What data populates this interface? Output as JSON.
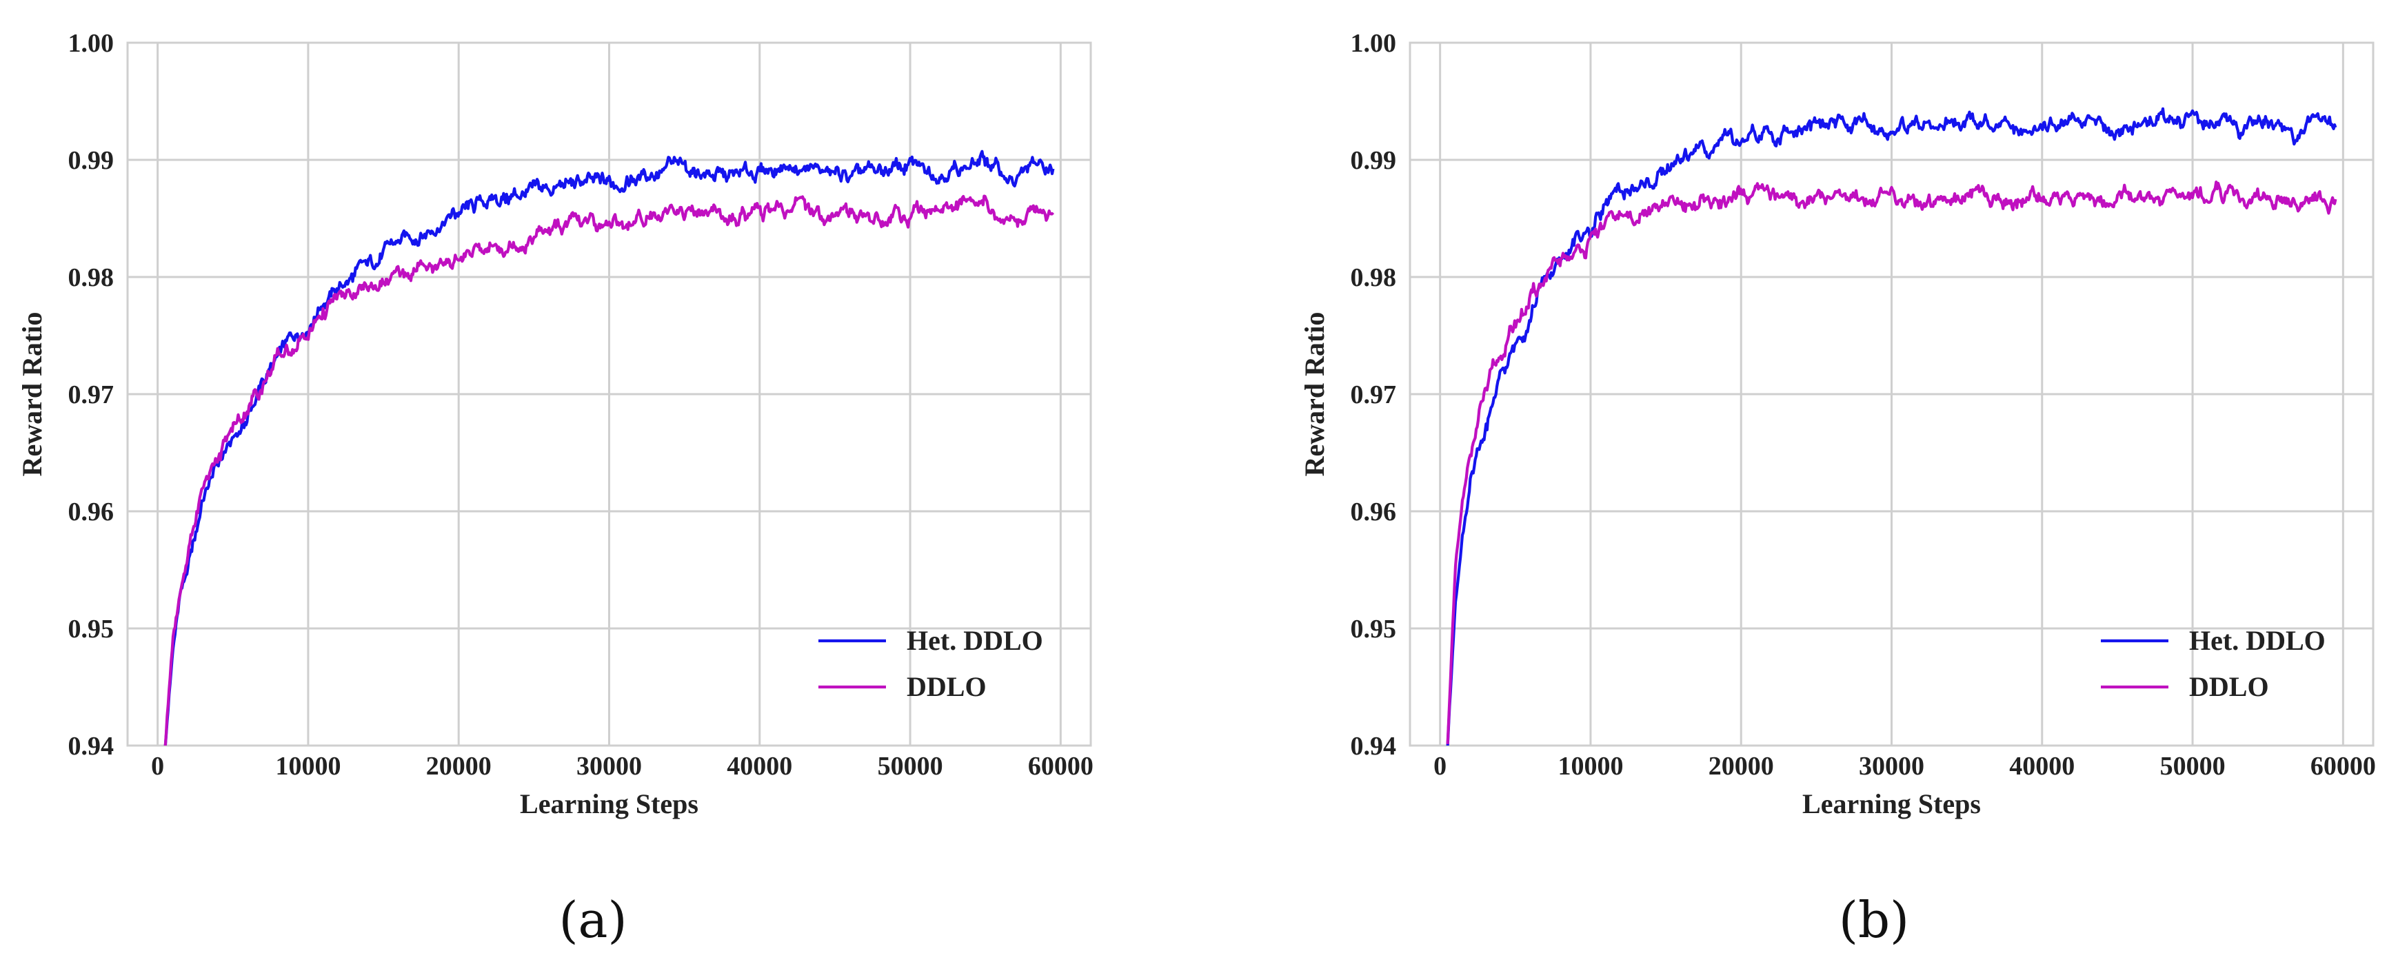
{
  "charts": [
    {
      "caption": "(a)",
      "chart_data": {
        "type": "line",
        "title": "",
        "xlabel": "Learning Steps",
        "ylabel": "Reward Ratio",
        "xlim": [
          -2000,
          62000
        ],
        "ylim": [
          0.94,
          1.0
        ],
        "xticks": [
          0,
          10000,
          20000,
          30000,
          40000,
          50000,
          60000
        ],
        "yticks": [
          0.94,
          0.95,
          0.96,
          0.97,
          0.98,
          0.99,
          1.0
        ],
        "xtick_labels": [
          "0",
          "10000",
          "20000",
          "30000",
          "40000",
          "50000",
          "60000"
        ],
        "ytick_labels": [
          "0.94",
          "0.95",
          "0.96",
          "0.97",
          "0.98",
          "0.99",
          "1.00"
        ],
        "grid": true,
        "legend_position": "bottom-right",
        "series": [
          {
            "name": "Het. DDLO",
            "color": "#1414ee",
            "x": [
              500,
              1000,
              1500,
              2000,
              3000,
              4000,
              5000,
              6000,
              7000,
              8000,
              9000,
              10000,
              11000,
              12000,
              14000,
              16000,
              18000,
              20000,
              22000,
              24000,
              26000,
              28000,
              30000,
              32000,
              34000,
              36000,
              38000,
              40000,
              42000,
              44000,
              46000,
              48000,
              50000,
              52000,
              54000,
              55000,
              56000,
              57000,
              58000,
              59500
            ],
            "y": [
              0.94,
              0.948,
              0.953,
              0.955,
              0.961,
              0.964,
              0.966,
              0.968,
              0.971,
              0.973,
              0.975,
              0.976,
              0.978,
              0.979,
              0.981,
              0.983,
              0.984,
              0.9855,
              0.9865,
              0.987,
              0.9875,
              0.988,
              0.988,
              0.9885,
              0.9895,
              0.989,
              0.9885,
              0.989,
              0.9895,
              0.989,
              0.9885,
              0.989,
              0.9895,
              0.989,
              0.9895,
              0.99,
              0.989,
              0.988,
              0.9895,
              0.989
            ]
          },
          {
            "name": "DDLO",
            "color": "#c010c0",
            "x": [
              500,
              1000,
              1500,
              2000,
              3000,
              4000,
              5000,
              6000,
              7000,
              8000,
              9000,
              10000,
              11000,
              12000,
              14000,
              16000,
              18000,
              20000,
              22000,
              24000,
              26000,
              28000,
              30000,
              32000,
              34000,
              36000,
              38000,
              40000,
              42000,
              44000,
              46000,
              48000,
              50000,
              52000,
              54000,
              55000,
              56000,
              57000,
              58000,
              59500
            ],
            "y": [
              0.94,
              0.949,
              0.953,
              0.956,
              0.962,
              0.965,
              0.967,
              0.969,
              0.971,
              0.973,
              0.974,
              0.975,
              0.977,
              0.978,
              0.979,
              0.98,
              0.981,
              0.9815,
              0.9825,
              0.983,
              0.984,
              0.9845,
              0.9845,
              0.985,
              0.986,
              0.9855,
              0.985,
              0.9855,
              0.986,
              0.9855,
              0.9855,
              0.985,
              0.9855,
              0.986,
              0.986,
              0.9865,
              0.985,
              0.9845,
              0.986,
              0.9855
            ]
          }
        ]
      }
    },
    {
      "caption": "(b)",
      "chart_data": {
        "type": "line",
        "title": "",
        "xlabel": "Learning Steps",
        "ylabel": "Reward Ratio",
        "xlim": [
          -2000,
          62000
        ],
        "ylim": [
          0.94,
          1.0
        ],
        "xticks": [
          0,
          10000,
          20000,
          30000,
          40000,
          50000,
          60000
        ],
        "yticks": [
          0.94,
          0.95,
          0.96,
          0.97,
          0.98,
          0.99,
          1.0
        ],
        "xtick_labels": [
          "0",
          "10000",
          "20000",
          "30000",
          "40000",
          "50000",
          "60000"
        ],
        "ytick_labels": [
          "0.94",
          "0.95",
          "0.96",
          "0.97",
          "0.98",
          "0.99",
          "1.00"
        ],
        "grid": true,
        "legend_position": "bottom-right",
        "series": [
          {
            "name": "Het. DDLO",
            "color": "#1414ee",
            "x": [
              500,
              1000,
              1500,
              2000,
              3000,
              4000,
              5000,
              6000,
              7000,
              8000,
              9000,
              10000,
              11000,
              12000,
              14000,
              16000,
              18000,
              20000,
              22000,
              24000,
              26000,
              28000,
              30000,
              32000,
              34000,
              36000,
              38000,
              40000,
              42000,
              44000,
              46000,
              48000,
              50000,
              52000,
              54000,
              55000,
              56000,
              57000,
              58000,
              59500
            ],
            "y": [
              0.94,
              0.952,
              0.958,
              0.962,
              0.967,
              0.971,
              0.974,
              0.977,
              0.98,
              0.981,
              0.983,
              0.984,
              0.9865,
              0.987,
              0.988,
              0.99,
              0.9915,
              0.9915,
              0.992,
              0.9925,
              0.993,
              0.993,
              0.9925,
              0.993,
              0.9935,
              0.9935,
              0.9925,
              0.993,
              0.9935,
              0.9925,
              0.993,
              0.9935,
              0.9935,
              0.9925,
              0.993,
              0.9935,
              0.9925,
              0.992,
              0.9935,
              0.993
            ]
          },
          {
            "name": "DDLO",
            "color": "#c010c0",
            "x": [
              500,
              1000,
              1500,
              2000,
              3000,
              4000,
              5000,
              6000,
              7000,
              8000,
              9000,
              10000,
              11000,
              12000,
              14000,
              16000,
              18000,
              20000,
              22000,
              24000,
              26000,
              28000,
              30000,
              32000,
              34000,
              36000,
              38000,
              40000,
              42000,
              44000,
              46000,
              48000,
              50000,
              52000,
              54000,
              55000,
              56000,
              57000,
              58000,
              59500
            ],
            "y": [
              0.94,
              0.955,
              0.961,
              0.965,
              0.97,
              0.973,
              0.976,
              0.978,
              0.98,
              0.981,
              0.982,
              0.983,
              0.9845,
              0.985,
              0.9855,
              0.986,
              0.9865,
              0.9865,
              0.987,
              0.9865,
              0.987,
              0.987,
              0.9865,
              0.9865,
              0.987,
              0.987,
              0.9865,
              0.987,
              0.987,
              0.9865,
              0.987,
              0.9865,
              0.987,
              0.987,
              0.9865,
              0.987,
              0.9865,
              0.986,
              0.9865,
              0.9865
            ]
          }
        ]
      }
    }
  ]
}
